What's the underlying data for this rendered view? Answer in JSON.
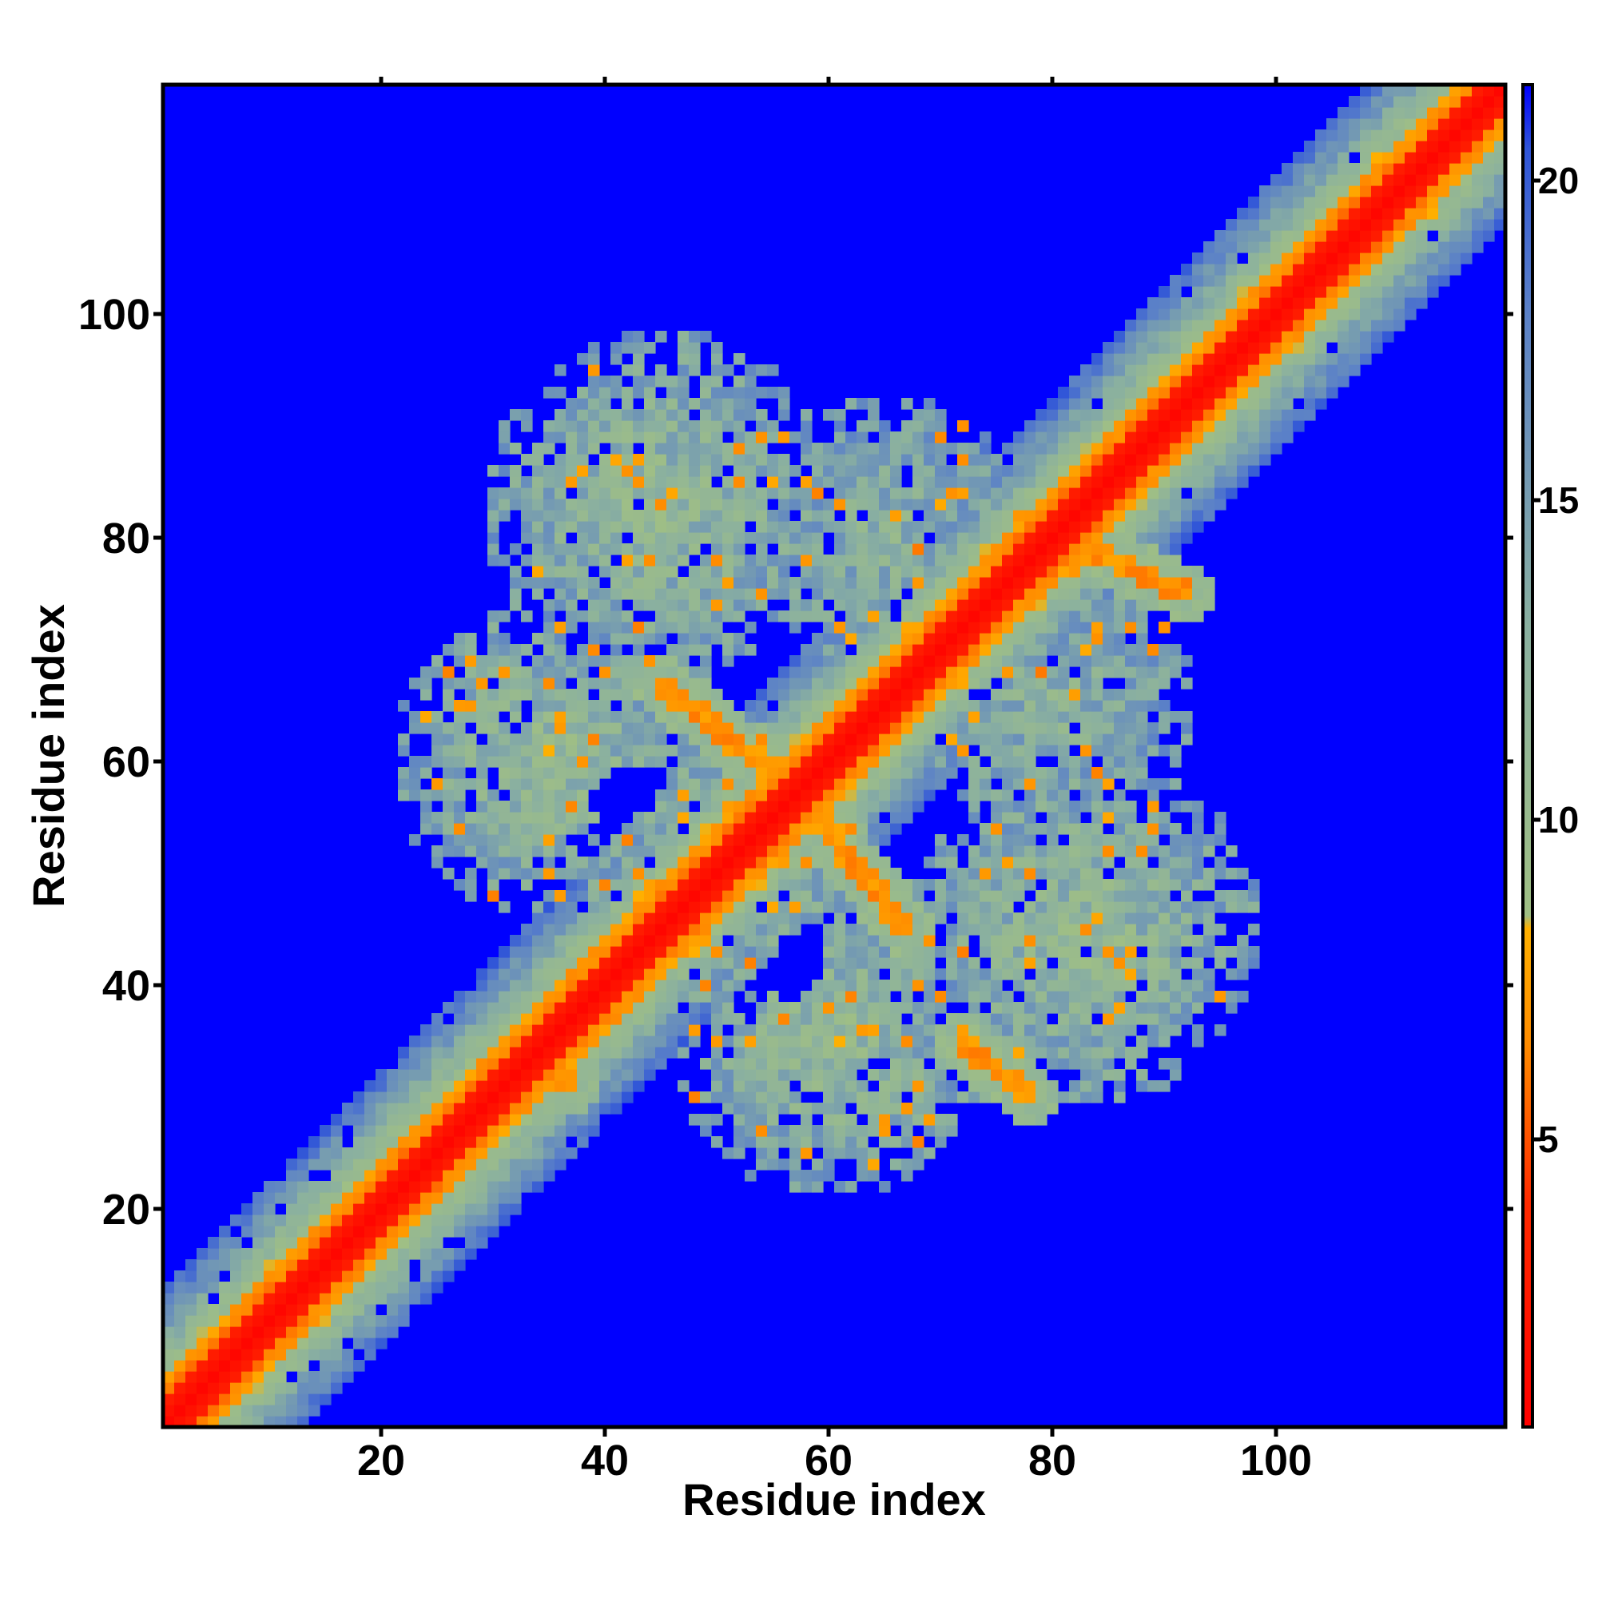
{
  "chart_data": {
    "type": "heatmap",
    "title": "",
    "xlabel": "Residue index",
    "ylabel": "Residue index",
    "x_range": [
      1,
      120
    ],
    "y_range": [
      1,
      120
    ],
    "x_ticks": [
      20,
      40,
      60,
      80,
      100
    ],
    "y_ticks": [
      20,
      40,
      60,
      80,
      100
    ],
    "colorbar": {
      "range": [
        0.5,
        21.5
      ],
      "ticks": [
        5,
        10,
        15,
        20
      ],
      "stops": [
        {
          "value": 0.5,
          "color": "#ff0000"
        },
        {
          "value": 4.0,
          "color": "#ff2a00"
        },
        {
          "value": 6.5,
          "color": "#ff8c00"
        },
        {
          "value": 8.3,
          "color": "#ffb000"
        },
        {
          "value": 8.5,
          "color": "#a0bf84"
        },
        {
          "value": 13.0,
          "color": "#8ab0a0"
        },
        {
          "value": 18.0,
          "color": "#5a80c8"
        },
        {
          "value": 20.5,
          "color": "#3055d8"
        },
        {
          "value": 21.5,
          "color": "#0000ff"
        }
      ]
    },
    "background_color": "#0000ff",
    "matrix_note": "symmetric residue distance map; values > 21 render blue",
    "features": {
      "diagonal_band": {
        "core_width": 2.2,
        "near_width": 4.5,
        "halo_width": 12
      },
      "bands": [
        {
          "from": [
            33,
            34
          ],
          "to": [
            37,
            31
          ],
          "value": 6
        },
        {
          "from": [
            45,
            67
          ],
          "to": [
            55,
            59
          ],
          "value": 6
        },
        {
          "from": [
            67,
            45
          ],
          "to": [
            59,
            55
          ],
          "value": 6
        },
        {
          "from": [
            72,
            35
          ],
          "to": [
            78,
            30
          ],
          "value": 6
        },
        {
          "from": [
            83,
            79
          ],
          "to": [
            92,
            75
          ],
          "value": 6
        }
      ],
      "clusters": [
        {
          "center": [
            45,
            83
          ],
          "radius": 16,
          "value": 11
        },
        {
          "center": [
            83,
            45
          ],
          "radius": 16,
          "value": 11
        },
        {
          "center": [
            35,
            60
          ],
          "radius": 14,
          "value": 11
        },
        {
          "center": [
            60,
            35
          ],
          "radius": 14,
          "value": 11
        },
        {
          "center": [
            65,
            80
          ],
          "radius": 13,
          "value": 12
        },
        {
          "center": [
            80,
            65
          ],
          "radius": 13,
          "value": 12
        },
        {
          "center": [
            50,
            55
          ],
          "radius": 10,
          "value": 12
        },
        {
          "center": [
            55,
            50
          ],
          "radius": 10,
          "value": 12
        }
      ],
      "holes": [
        {
          "center": [
            43,
            56
          ],
          "radius": 4
        },
        {
          "center": [
            56,
            43
          ],
          "radius": 4
        },
        {
          "center": [
            68,
            58
          ],
          "radius": 4
        },
        {
          "center": [
            58,
            68
          ],
          "radius": 4
        },
        {
          "center": [
            55,
            67
          ],
          "radius": 3
        },
        {
          "center": [
            67,
            55
          ],
          "radius": 3
        },
        {
          "center": [
            77,
            75
          ],
          "radius": 3
        },
        {
          "center": [
            75,
            77
          ],
          "radius": 3
        }
      ]
    }
  }
}
